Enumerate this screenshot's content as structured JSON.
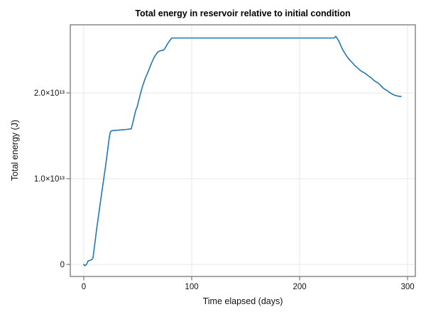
{
  "figure": {
    "background": "#ffffff",
    "frame_color": "#777777",
    "grid_color": "#ebebeb",
    "tick_color": "#777777",
    "text_color": "#111111"
  },
  "chart_data": {
    "type": "line",
    "title": "Total energy in reservoir relative to initial condition",
    "xlabel": "Time elapsed (days)",
    "ylabel": "Total energy (J)",
    "legend": null,
    "grid": true,
    "xlim": [
      -12.5,
      307.2
    ],
    "ylim": [
      -1400000000000.0,
      27940000000000.0
    ],
    "x_ticks": [
      {
        "value": 0,
        "label": "0"
      },
      {
        "value": 100,
        "label": "100"
      },
      {
        "value": 200,
        "label": "200"
      },
      {
        "value": 300,
        "label": "300"
      }
    ],
    "y_ticks": [
      {
        "value": 0,
        "label": "0"
      },
      {
        "value": 10000000000000.0,
        "label": "1.0×10¹³"
      },
      {
        "value": 20000000000000.0,
        "label": "2.0×10¹³"
      }
    ],
    "series": [
      {
        "name": "total-energy",
        "color": "#1f77b4",
        "line_width": 1.6,
        "x": [
          0,
          1,
          2.5,
          4,
          6,
          7.5,
          8.5,
          10,
          12,
          14,
          16,
          18.5,
          20,
          22,
          23.5,
          24.5,
          25.5,
          28,
          32,
          36,
          40,
          44,
          45,
          46.5,
          48,
          49.5,
          51.5,
          52.7,
          54.5,
          57,
          60,
          62.5,
          65,
          67,
          68.5,
          70,
          72,
          74,
          75.5,
          77,
          78.5,
          80,
          81.5,
          90,
          110,
          130,
          150,
          170,
          190,
          210,
          225,
          232,
          233.5,
          235,
          236.5,
          238,
          239.5,
          241,
          243,
          245,
          247,
          249,
          251,
          253,
          255,
          257,
          259,
          261,
          262.5,
          264,
          266,
          268,
          270,
          272,
          274,
          276,
          278,
          280,
          282,
          284,
          286,
          288,
          290,
          292,
          294
        ],
        "y": [
          0,
          -150000000000.0,
          0,
          400000000000.0,
          500000000000.0,
          550000000000.0,
          750000000000.0,
          2200000000000.0,
          4200000000000.0,
          6000000000000.0,
          7800000000000.0,
          10000000000000.0,
          11300000000000.0,
          13200000000000.0,
          14700000000000.0,
          15400000000000.0,
          15580000000000.0,
          15620000000000.0,
          15660000000000.0,
          15700000000000.0,
          15750000000000.0,
          15820000000000.0,
          16300000000000.0,
          17100000000000.0,
          17900000000000.0,
          18400000000000.0,
          19400000000000.0,
          20000000000000.0,
          20800000000000.0,
          21700000000000.0,
          22600000000000.0,
          23400000000000.0,
          24100000000000.0,
          24500000000000.0,
          24750000000000.0,
          24870000000000.0,
          24940000000000.0,
          25000000000000.0,
          25250000000000.0,
          25600000000000.0,
          25900000000000.0,
          26150000000000.0,
          26400000000000.0,
          26400000000000.0,
          26400000000000.0,
          26400000000000.0,
          26400000000000.0,
          26400000000000.0,
          26400000000000.0,
          26400000000000.0,
          26400000000000.0,
          26400000000000.0,
          26600000000000.0,
          26300000000000.0,
          26000000000000.0,
          25550000000000.0,
          25150000000000.0,
          24800000000000.0,
          24400000000000.0,
          24050000000000.0,
          23750000000000.0,
          23500000000000.0,
          23200000000000.0,
          23000000000000.0,
          22750000000000.0,
          22550000000000.0,
          22400000000000.0,
          22250000000000.0,
          22100000000000.0,
          21950000000000.0,
          21800000000000.0,
          21550000000000.0,
          21350000000000.0,
          21200000000000.0,
          21000000000000.0,
          20750000000000.0,
          20500000000000.0,
          20350000000000.0,
          20180000000000.0,
          20000000000000.0,
          19850000000000.0,
          19740000000000.0,
          19660000000000.0,
          19610000000000.0,
          19590000000000.0
        ]
      }
    ]
  }
}
